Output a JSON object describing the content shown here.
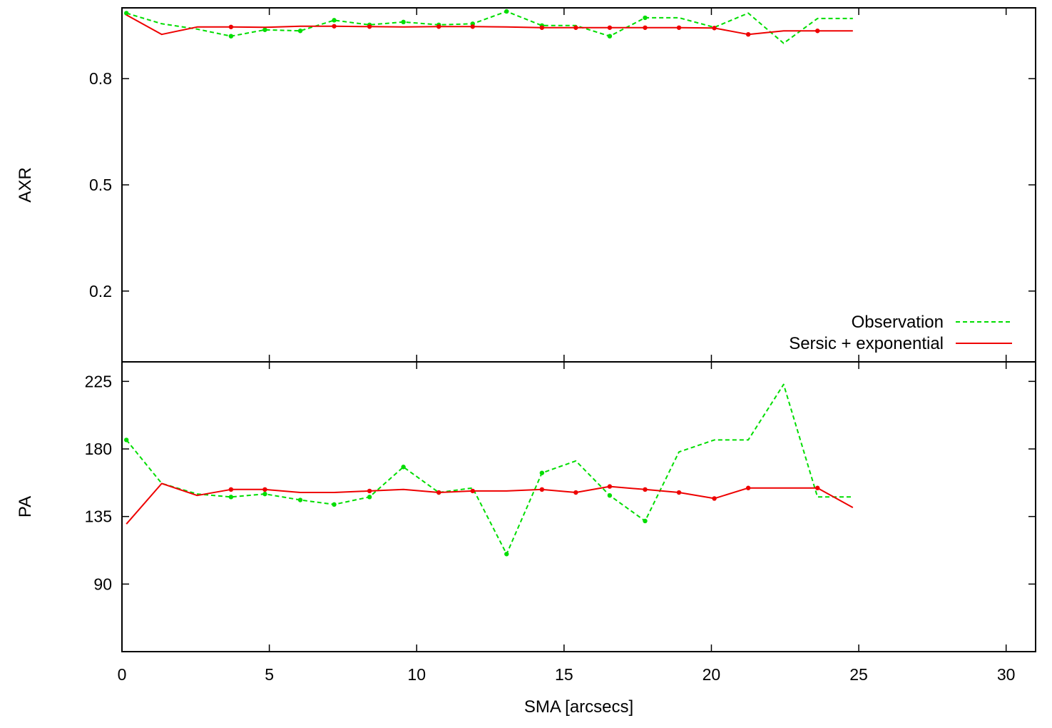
{
  "chart_data": [
    {
      "type": "line",
      "panel": "top",
      "title": "",
      "xlabel": "",
      "ylabel": "AXR",
      "xlim": [
        0,
        31
      ],
      "ylim": [
        0.0,
        1.0
      ],
      "yticks": [
        0.2,
        0.5,
        0.8
      ],
      "ytick_labels": [
        "0.2",
        "0.5",
        "0.8"
      ],
      "xticks": [
        0,
        5,
        10,
        15,
        20,
        25,
        30
      ],
      "grid": false,
      "legend_position": "bottom-right",
      "series": [
        {
          "name": "Observation",
          "style": "dashed",
          "color": "#00dd00",
          "x": [
            0.15,
            1.35,
            2.55,
            3.7,
            4.85,
            6.05,
            7.2,
            8.4,
            9.55,
            10.75,
            11.9,
            13.05,
            14.25,
            15.4,
            16.55,
            17.75,
            18.9,
            20.1,
            21.25,
            22.45,
            23.6,
            24.8
          ],
          "y": [
            0.985,
            0.955,
            0.94,
            0.92,
            0.938,
            0.935,
            0.965,
            0.952,
            0.96,
            0.952,
            0.955,
            0.99,
            0.95,
            0.95,
            0.92,
            0.972,
            0.972,
            0.945,
            0.985,
            0.9,
            0.97,
            0.97
          ],
          "markers_x": [
            0.15,
            3.7,
            4.85,
            6.05,
            7.2,
            8.4,
            9.55,
            10.75,
            11.9,
            13.05,
            14.25,
            16.55,
            17.75
          ]
        },
        {
          "name": "Sersic + exponential",
          "style": "solid",
          "color": "#ee0000",
          "x": [
            0.15,
            1.35,
            2.55,
            3.7,
            4.85,
            6.05,
            7.2,
            8.4,
            9.55,
            10.75,
            11.9,
            13.05,
            14.25,
            15.4,
            16.55,
            17.75,
            18.9,
            20.1,
            21.25,
            22.45,
            23.6,
            24.8
          ],
          "y": [
            0.98,
            0.925,
            0.946,
            0.946,
            0.945,
            0.948,
            0.948,
            0.947,
            0.946,
            0.947,
            0.947,
            0.946,
            0.944,
            0.944,
            0.944,
            0.944,
            0.944,
            0.943,
            0.925,
            0.935,
            0.935,
            0.935
          ],
          "markers_x": [
            3.7,
            7.2,
            8.4,
            10.75,
            11.9,
            14.25,
            15.4,
            16.55,
            17.75,
            18.9,
            20.1,
            21.25,
            23.6
          ]
        }
      ],
      "legend": [
        "Observation",
        "Sersic + exponential"
      ]
    },
    {
      "type": "line",
      "panel": "bottom",
      "title": "",
      "xlabel": "SMA [arcsecs]",
      "ylabel": "PA",
      "xlim": [
        0,
        31
      ],
      "ylim": [
        45,
        238
      ],
      "yticks": [
        90,
        135,
        180,
        225
      ],
      "ytick_labels": [
        "90",
        "135",
        "180",
        "225"
      ],
      "xticks": [
        0,
        5,
        10,
        15,
        20,
        25,
        30
      ],
      "xtick_labels": [
        "0",
        "5",
        "10",
        "15",
        "20",
        "25",
        "30"
      ],
      "grid": false,
      "series": [
        {
          "name": "Observation",
          "style": "dashed",
          "color": "#00dd00",
          "x": [
            0.15,
            1.35,
            2.55,
            3.7,
            4.85,
            6.05,
            7.2,
            8.4,
            9.55,
            10.75,
            11.9,
            13.05,
            14.25,
            15.4,
            16.55,
            17.75,
            18.9,
            20.1,
            21.25,
            22.45,
            23.6,
            24.8
          ],
          "y": [
            186,
            157,
            150,
            148,
            150,
            146,
            143,
            148,
            168,
            151,
            154,
            110,
            164,
            172,
            149,
            132,
            178,
            186,
            186,
            223,
            148,
            148
          ],
          "markers_x": [
            0.15,
            3.7,
            4.85,
            6.05,
            7.2,
            8.4,
            9.55,
            10.75,
            13.05,
            14.25,
            16.55,
            17.75
          ]
        },
        {
          "name": "Sersic + exponential",
          "style": "solid",
          "color": "#ee0000",
          "x": [
            0.15,
            1.35,
            2.55,
            3.7,
            4.85,
            6.05,
            7.2,
            8.4,
            9.55,
            10.75,
            11.9,
            13.05,
            14.25,
            15.4,
            16.55,
            17.75,
            18.9,
            20.1,
            21.25,
            22.45,
            23.6,
            24.8
          ],
          "y": [
            130,
            157,
            149,
            153,
            153,
            151,
            151,
            152,
            153,
            151,
            152,
            152,
            153,
            151,
            155,
            153,
            151,
            147,
            154,
            154,
            154,
            141
          ],
          "markers_x": [
            3.7,
            4.85,
            8.4,
            10.75,
            11.9,
            14.25,
            15.4,
            16.55,
            17.75,
            18.9,
            20.1,
            21.25,
            23.6
          ]
        }
      ]
    }
  ],
  "colors": {
    "observation": "#00dd00",
    "model": "#ee0000",
    "frame": "#000000"
  }
}
